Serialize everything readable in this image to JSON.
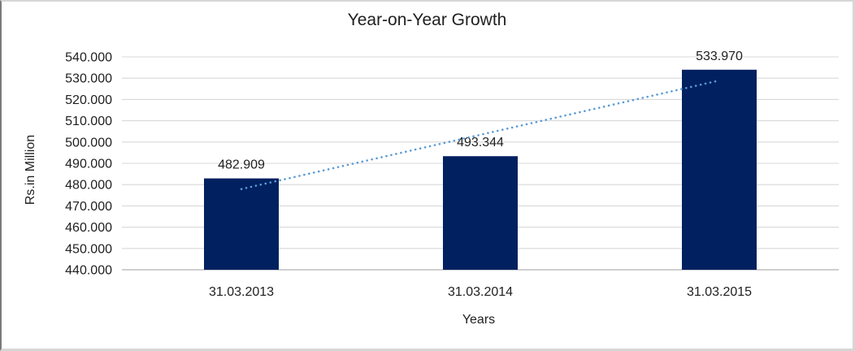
{
  "chart_data": {
    "type": "bar",
    "title": "Year-on-Year Growth",
    "xlabel": "Years",
    "ylabel": "Rs.in Million",
    "categories": [
      "31.03.2013",
      "31.03.2014",
      "31.03.2015"
    ],
    "values": [
      482.909,
      493.344,
      533.97
    ],
    "data_labels": [
      "482.909",
      "493.344",
      "533.970"
    ],
    "ylim": [
      440,
      540
    ],
    "ytick_step": 10,
    "ytick_labels": [
      "440.000",
      "450.000",
      "460.000",
      "470.000",
      "480.000",
      "490.000",
      "500.000",
      "510.000",
      "520.000",
      "530.000",
      "540.000"
    ],
    "grid": true,
    "legend": "none",
    "bar_color": "#002060",
    "gridline_color": "#D9D9D9",
    "axis_line_color": "#BFBFBF",
    "text_color": "#1F1F1F",
    "trendline": {
      "type": "linear",
      "style": "dotted",
      "color": "#5B9BD5",
      "start_value": 477.9,
      "end_value": 528.9
    }
  }
}
